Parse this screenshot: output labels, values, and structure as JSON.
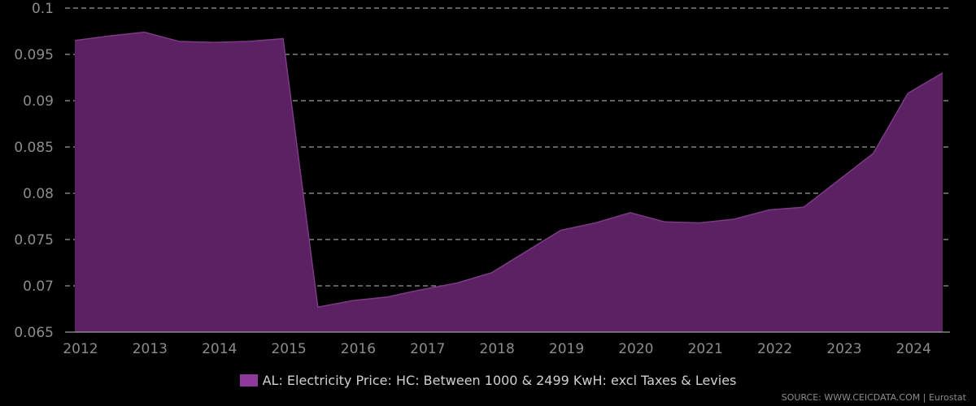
{
  "chart_data": {
    "type": "area",
    "x": [
      2012.0,
      2012.5,
      2013.0,
      2013.5,
      2014.0,
      2014.5,
      2015.0,
      2015.5,
      2016.0,
      2016.5,
      2017.0,
      2017.5,
      2018.0,
      2018.5,
      2019.0,
      2019.5,
      2020.0,
      2020.5,
      2021.0,
      2021.5,
      2022.0,
      2022.5,
      2023.0,
      2023.5,
      2024.0,
      2024.5
    ],
    "series": [
      {
        "name": "AL: Electricity Price: HC: Between 1000 & 2499 KwH: excl Taxes & Levies",
        "color": "#5b2162",
        "stroke": "#7c3a84",
        "swatch": "#8e3a9a",
        "values": [
          0.0965,
          0.097,
          0.0974,
          0.0964,
          0.0963,
          0.0964,
          0.0967,
          0.0677,
          0.0684,
          0.0688,
          0.0696,
          0.0703,
          0.0714,
          0.0737,
          0.076,
          0.0768,
          0.0779,
          0.0769,
          0.0768,
          0.0772,
          0.0782,
          0.0785,
          0.0814,
          0.0843,
          0.0908,
          0.093
        ]
      }
    ],
    "ylim": [
      0.065,
      0.1
    ],
    "yticks": [
      "0.065",
      "0.07",
      "0.075",
      "0.08",
      "0.085",
      "0.09",
      "0.095",
      "0.1"
    ],
    "xticks": [
      "2012",
      "2013",
      "2014",
      "2015",
      "2016",
      "2017",
      "2018",
      "2019",
      "2020",
      "2021",
      "2022",
      "2023",
      "2024"
    ],
    "grid": true,
    "legend_position": "bottom-center",
    "source": "SOURCE: WWW.CEICDATA.COM | Eurostat"
  }
}
